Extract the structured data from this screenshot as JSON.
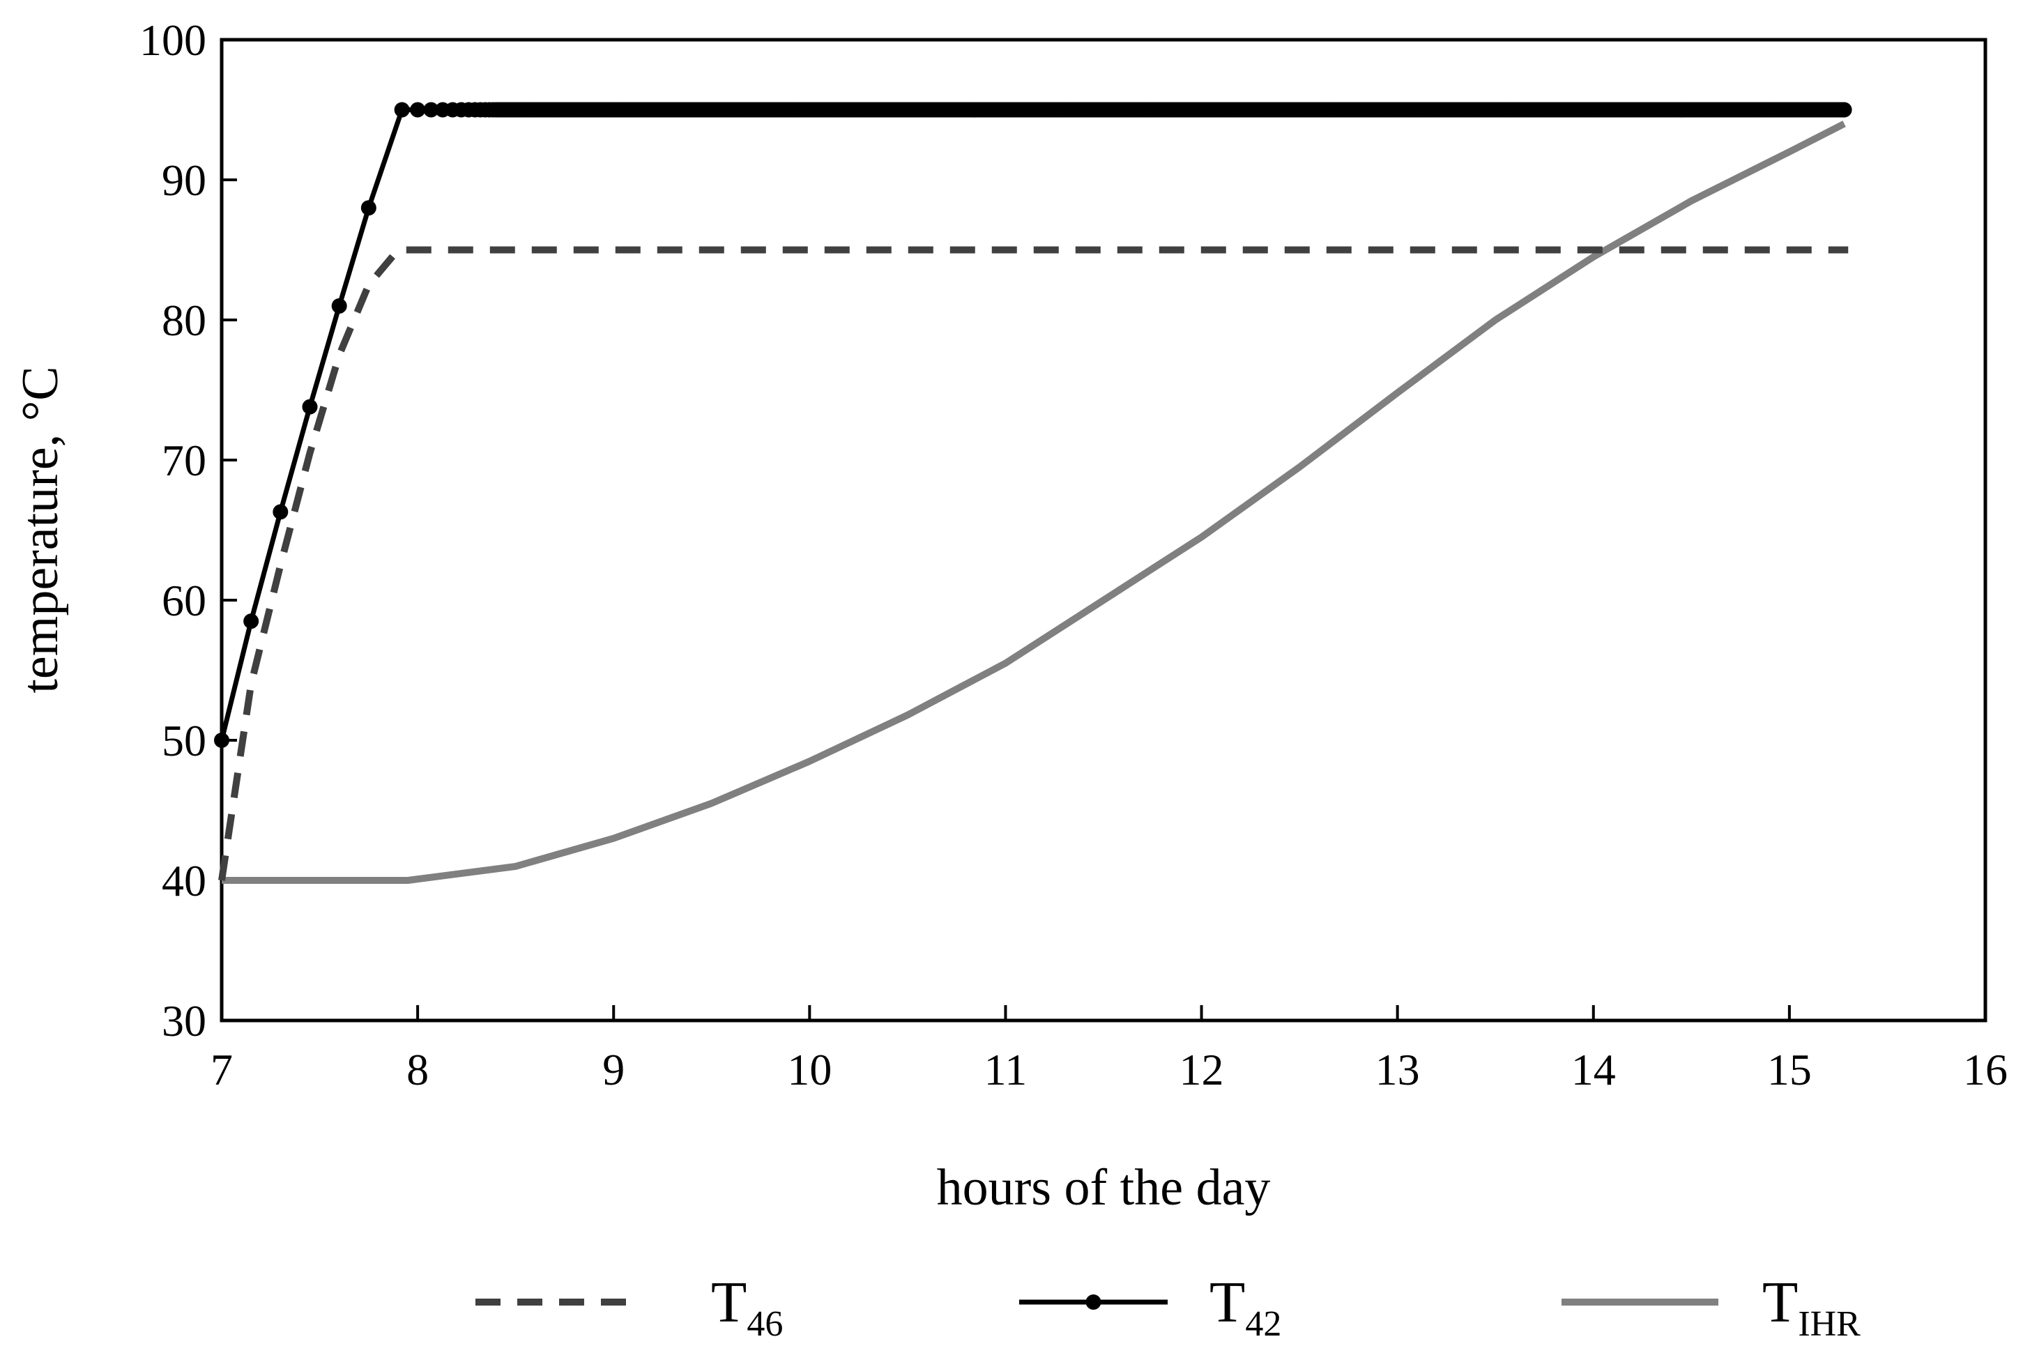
{
  "chart_data": {
    "type": "line",
    "xlabel": "hours of the day",
    "ylabel": "temperature, °C",
    "xlim": [
      7,
      16
    ],
    "ylim": [
      30,
      100
    ],
    "x_ticks": [
      7,
      8,
      9,
      10,
      11,
      12,
      13,
      14,
      15,
      16
    ],
    "y_ticks": [
      30,
      40,
      50,
      60,
      70,
      80,
      90,
      100
    ],
    "grid": false,
    "legend_position": "bottom",
    "series": [
      {
        "name": "T",
        "subscript": "46",
        "style": "dashed",
        "color": "#404040",
        "x": [
          7.0,
          7.15,
          7.3,
          7.45,
          7.6,
          7.75,
          7.9,
          8.0,
          9.0,
          10.0,
          11.0,
          12.0,
          13.0,
          14.0,
          15.0,
          15.3
        ],
        "y": [
          40,
          54,
          62.5,
          70.5,
          77.5,
          82.5,
          85,
          85,
          85,
          85,
          85,
          85,
          85,
          85,
          85,
          85
        ]
      },
      {
        "name": "T",
        "subscript": "42",
        "style": "solid-markers",
        "color": "#000000",
        "x": [
          7.0,
          7.15,
          7.3,
          7.45,
          7.6,
          7.75,
          7.92,
          8.0,
          9.0,
          10.0,
          11.0,
          12.0,
          13.0,
          14.0,
          15.0,
          15.28
        ],
        "y": [
          50,
          58.5,
          66.3,
          73.8,
          81,
          88,
          95,
          95,
          95,
          95,
          95,
          95,
          95,
          95,
          95,
          95
        ]
      },
      {
        "name": "T",
        "subscript": "IHR",
        "style": "solid",
        "color": "#808080",
        "x": [
          7.0,
          7.5,
          7.95,
          8.5,
          9.0,
          9.5,
          10.0,
          10.5,
          11.0,
          11.5,
          12.0,
          12.5,
          13.0,
          13.5,
          14.0,
          14.5,
          15.0,
          15.28
        ],
        "y": [
          40,
          40,
          40,
          41,
          43,
          45.5,
          48.5,
          51.8,
          55.5,
          60,
          64.5,
          69.5,
          74.8,
          80,
          84.5,
          88.5,
          92,
          94
        ]
      }
    ]
  }
}
